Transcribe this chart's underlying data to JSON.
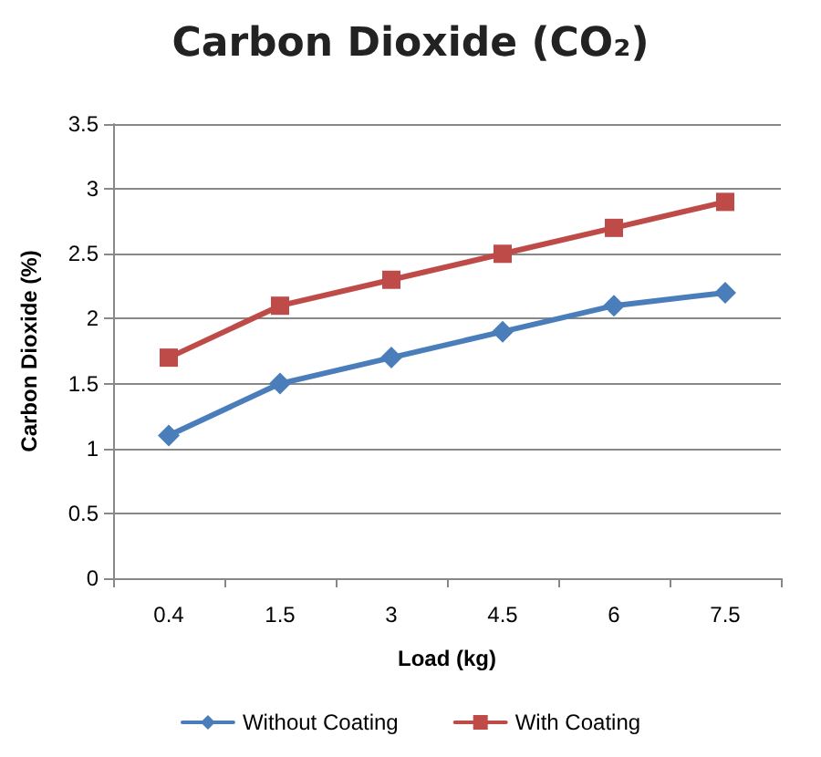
{
  "chart_data": {
    "type": "line",
    "title": "Carbon Dioxide (CO₂)",
    "xlabel": "Load (kg)",
    "ylabel": "Carbon Dioxide (%)",
    "categories": [
      "0.4",
      "1.5",
      "3",
      "4.5",
      "6",
      "7.5"
    ],
    "series": [
      {
        "name": "Without Coating",
        "color": "#4a7ebb",
        "marker": "diamond",
        "values": [
          1.1,
          1.5,
          1.7,
          1.9,
          2.1,
          2.2
        ]
      },
      {
        "name": "With Coating",
        "color": "#be4b48",
        "marker": "square",
        "values": [
          1.7,
          2.1,
          2.3,
          2.5,
          2.7,
          2.9
        ]
      }
    ],
    "ylim": [
      0,
      3.5
    ],
    "yticks": [
      0,
      0.5,
      1,
      1.5,
      2,
      2.5,
      3,
      3.5
    ],
    "grid": "y",
    "legend": "bottom",
    "line_style": "solid"
  }
}
